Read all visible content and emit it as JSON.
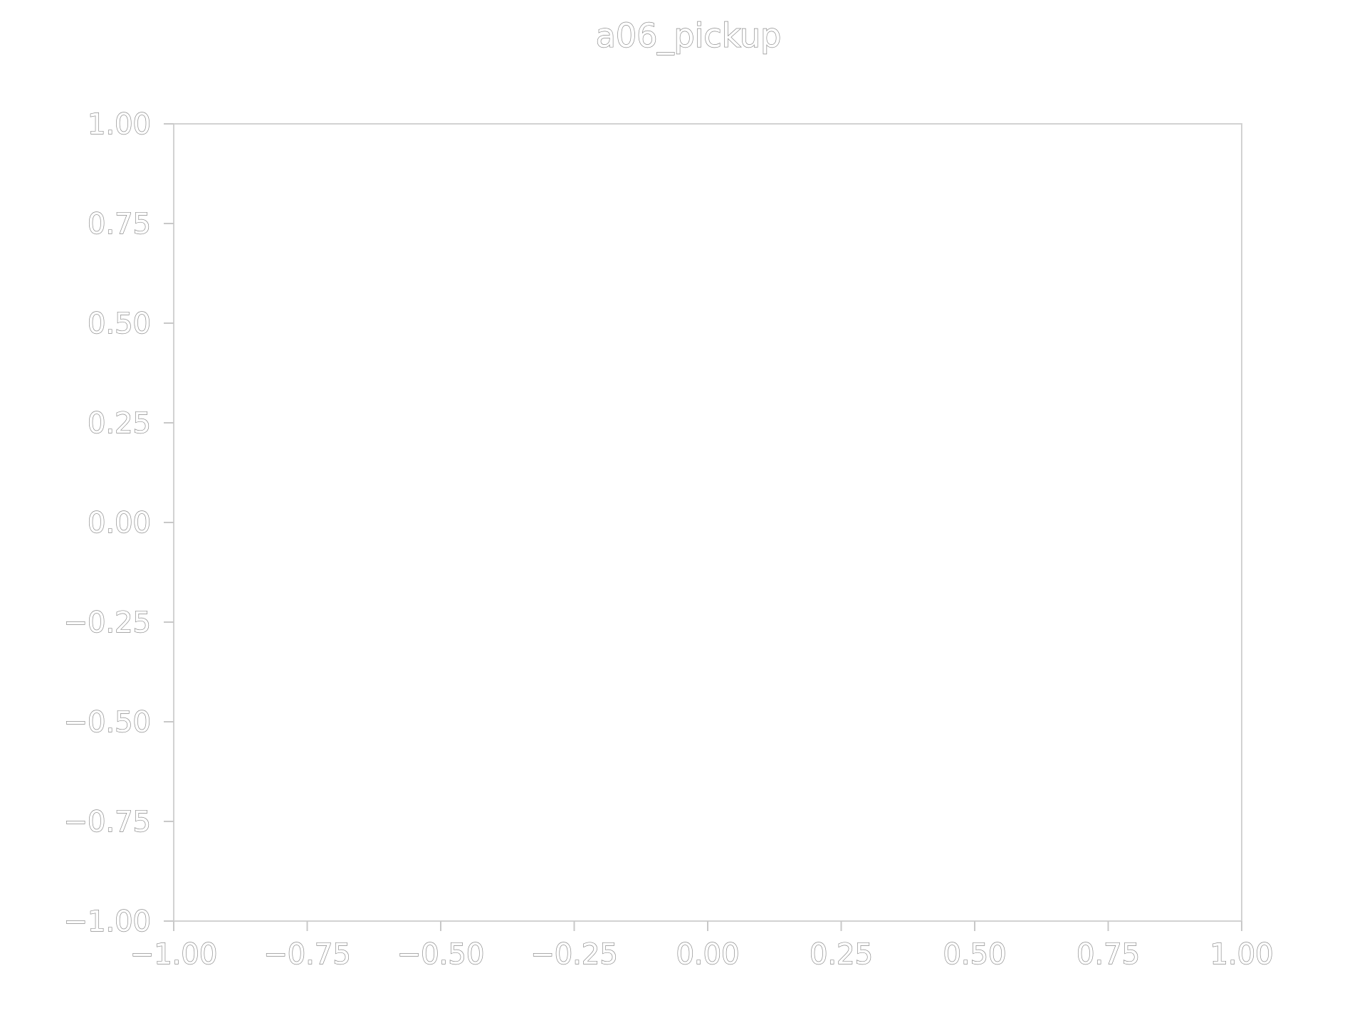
{
  "chart_data": {
    "type": "scatter",
    "title": "a06_pickup",
    "xlabel": "",
    "ylabel": "",
    "xlim": [
      -1.0,
      1.0
    ],
    "ylim": [
      -1.0,
      1.0
    ],
    "x_ticks": [
      -1.0,
      -0.75,
      -0.5,
      -0.25,
      0.0,
      0.25,
      0.5,
      0.75,
      1.0
    ],
    "y_ticks": [
      -1.0,
      -0.75,
      -0.5,
      -0.25,
      0.0,
      0.25,
      0.5,
      0.75,
      1.0
    ],
    "x_tick_labels": [
      "−1.00",
      "−0.75",
      "−0.50",
      "−0.25",
      "0.00",
      "0.25",
      "0.50",
      "0.75",
      "1.00"
    ],
    "y_tick_labels": [
      "−1.00",
      "−0.75",
      "−0.50",
      "−0.25",
      "0.00",
      "0.25",
      "0.50",
      "0.75",
      "1.00"
    ],
    "grid": false,
    "series": []
  },
  "colors": {
    "text_outline": "#8c8c8c",
    "frame": "#d2d2d2",
    "background": "#ffffff"
  }
}
